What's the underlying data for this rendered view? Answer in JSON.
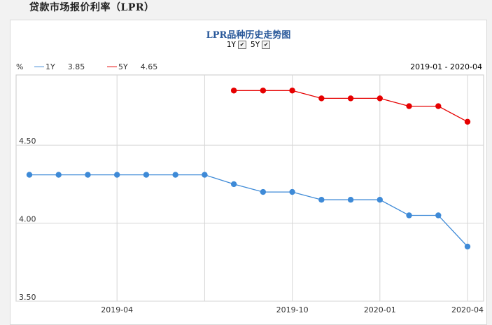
{
  "page": {
    "heading": "贷款市场报价利率（LPR）"
  },
  "chart": {
    "title": "LPR品种历史走势图",
    "toggles": [
      {
        "label": "1Y",
        "checked": true
      },
      {
        "label": "5Y",
        "checked": true
      }
    ],
    "unit_label": "%",
    "legend": [
      {
        "name": "1Y",
        "value": "3.85",
        "color": "#3e8ad7"
      },
      {
        "name": "5Y",
        "value": "4.65",
        "color": "#e60000"
      }
    ],
    "range_label": "2019-01 - 2020-04"
  },
  "chart_data": {
    "type": "line",
    "title": "LPR品种历史走势图",
    "ylabel": "%",
    "ylim": [
      3.5,
      4.95
    ],
    "yticks": [
      {
        "value": 3.5,
        "label": "3.50"
      },
      {
        "value": 4.0,
        "label": "4.00"
      },
      {
        "value": 4.5,
        "label": "4.50"
      }
    ],
    "x": [
      "2019-01",
      "2019-02",
      "2019-03",
      "2019-04",
      "2019-05",
      "2019-06",
      "2019-07",
      "2019-08",
      "2019-09",
      "2019-10",
      "2019-11",
      "2019-12",
      "2020-01",
      "2020-02",
      "2020-03",
      "2020-04"
    ],
    "xticks": [
      "2019-04",
      "2019-10",
      "2020-01",
      "2020-04"
    ],
    "xgrid": [
      "2019-04",
      "2019-07",
      "2019-10",
      "2020-01",
      "2020-04"
    ],
    "series": [
      {
        "name": "1Y",
        "color": "#3e8ad7",
        "values": [
          4.31,
          4.31,
          4.31,
          4.31,
          4.31,
          4.31,
          4.31,
          4.25,
          4.2,
          4.2,
          4.15,
          4.15,
          4.15,
          4.05,
          4.05,
          3.85
        ]
      },
      {
        "name": "5Y",
        "color": "#e60000",
        "values": [
          null,
          null,
          null,
          null,
          null,
          null,
          null,
          4.85,
          4.85,
          4.85,
          4.8,
          4.8,
          4.8,
          4.75,
          4.75,
          4.65
        ]
      }
    ],
    "grid": true,
    "legend_position": "top-left"
  }
}
